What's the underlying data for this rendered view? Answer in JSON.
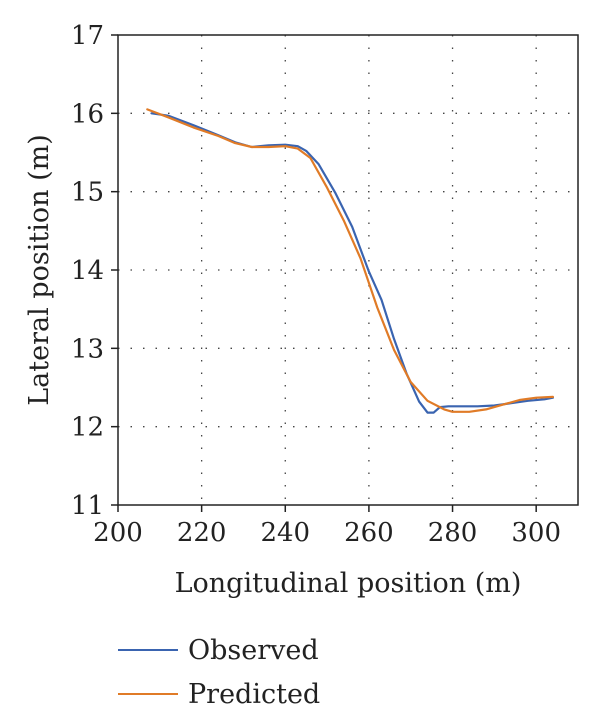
{
  "chart_data": {
    "type": "line",
    "xlabel": "Longitudinal position (m)",
    "ylabel": "Lateral position (m)",
    "xlim": [
      200,
      310
    ],
    "ylim": [
      11,
      17
    ],
    "x_ticks": [
      "200",
      "220",
      "240",
      "260",
      "280",
      "300"
    ],
    "y_ticks": [
      "11",
      "12",
      "13",
      "14",
      "15",
      "16",
      "17"
    ],
    "grid": "dotted",
    "legend_position": "bottom",
    "series": [
      {
        "name": "Observed",
        "color": "#3a64b0",
        "x": [
          208,
          212,
          218,
          224,
          228,
          232,
          236,
          240,
          243,
          245,
          248,
          252,
          256,
          260,
          263,
          266,
          269,
          272,
          274,
          275.5,
          277,
          279,
          282,
          286,
          290,
          294,
          298,
          302,
          304
        ],
        "y": [
          16.0,
          15.97,
          15.85,
          15.72,
          15.63,
          15.57,
          15.59,
          15.6,
          15.58,
          15.52,
          15.35,
          14.98,
          14.55,
          13.98,
          13.62,
          13.12,
          12.68,
          12.32,
          12.18,
          12.18,
          12.25,
          12.26,
          12.26,
          12.26,
          12.27,
          12.3,
          12.33,
          12.35,
          12.37
        ]
      },
      {
        "name": "Predicted",
        "color": "#e07b27",
        "x": [
          207,
          212,
          218,
          224,
          228,
          232,
          236,
          240,
          243,
          246,
          250,
          254,
          258,
          262,
          266,
          270,
          274,
          278,
          280,
          284,
          288,
          292,
          296,
          300,
          304
        ],
        "y": [
          16.05,
          15.95,
          15.82,
          15.71,
          15.62,
          15.57,
          15.57,
          15.58,
          15.55,
          15.43,
          15.05,
          14.63,
          14.15,
          13.52,
          12.98,
          12.57,
          12.33,
          12.22,
          12.19,
          12.19,
          12.22,
          12.28,
          12.34,
          12.37,
          12.38
        ]
      }
    ]
  }
}
